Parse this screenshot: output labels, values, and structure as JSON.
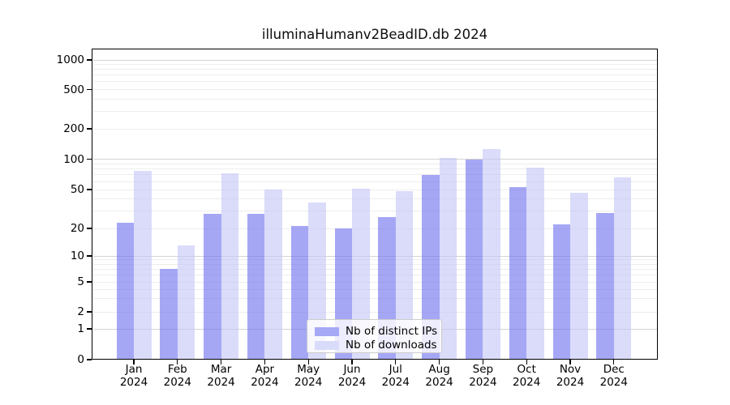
{
  "title": "illuminaHumanv2BeadID.db 2024",
  "chart_data": {
    "type": "bar",
    "title": "illuminaHumanv2BeadID.db 2024",
    "categories": [
      "Jan 2024",
      "Feb 2024",
      "Mar 2024",
      "Apr 2024",
      "May 2024",
      "Jun 2024",
      "Jul 2024",
      "Aug 2024",
      "Sep 2024",
      "Oct 2024",
      "Nov 2024",
      "Dec 2024"
    ],
    "series": [
      {
        "name": "Nb of distinct IPs",
        "color": "rgba(109,113,239,0.62)",
        "solid_color": "#a6a9f5",
        "values": [
          23,
          7,
          28,
          28,
          21,
          20,
          26,
          70,
          100,
          53,
          22,
          29
        ]
      },
      {
        "name": "Nb of downloads",
        "color": "rgba(195,198,247,0.62)",
        "solid_color": "#d9dbfa",
        "values": [
          76,
          13,
          72,
          50,
          37,
          51,
          48,
          103,
          125,
          82,
          46,
          66
        ]
      }
    ],
    "x_axis": {
      "months": [
        "Jan",
        "Feb",
        "Mar",
        "Apr",
        "May",
        "Jun",
        "Jul",
        "Aug",
        "Sep",
        "Oct",
        "Nov",
        "Dec"
      ],
      "year": "2024"
    },
    "y_axis": {
      "scale": "symlog",
      "tick_labels": [
        "0",
        "1",
        "2",
        "5",
        "10",
        "20",
        "50",
        "100",
        "200",
        "500",
        "1000"
      ],
      "tick_values": [
        0,
        1,
        2,
        5,
        10,
        20,
        50,
        100,
        200,
        500,
        1000
      ]
    },
    "grid": true,
    "legend": {
      "location": "lower center",
      "entries": [
        "Nb of distinct IPs",
        "Nb of downloads"
      ]
    },
    "grid_colors": {
      "major": "#d3d3d3",
      "minor": "#ededed"
    }
  }
}
